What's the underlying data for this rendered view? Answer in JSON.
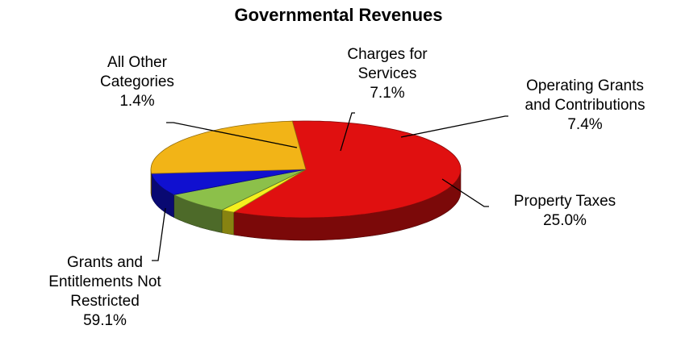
{
  "chart_data": {
    "type": "pie",
    "title": "Governmental Revenues",
    "slices": [
      {
        "label_lines": [
          "Grants and",
          "Entitlements Not",
          "Restricted"
        ],
        "pct_text": "59.1%",
        "value": 59.1,
        "color": "#e01010"
      },
      {
        "label_lines": [
          "All Other",
          "Categories"
        ],
        "pct_text": "1.4%",
        "value": 1.4,
        "color": "#f5ef1e"
      },
      {
        "label_lines": [
          "Charges for",
          "Services"
        ],
        "pct_text": "7.1%",
        "value": 7.1,
        "color": "#8cc04a"
      },
      {
        "label_lines": [
          "Operating Grants",
          "and Contributions"
        ],
        "pct_text": "7.4%",
        "value": 7.4,
        "color": "#1010d0"
      },
      {
        "label_lines": [
          "Property Taxes"
        ],
        "pct_text": "25.0%",
        "value": 25.0,
        "color": "#f2b417"
      }
    ]
  }
}
